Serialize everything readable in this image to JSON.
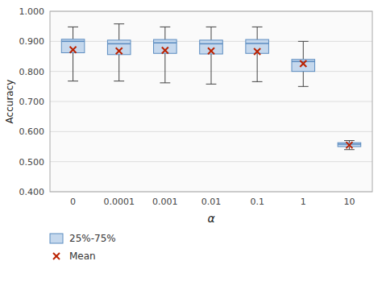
{
  "chart_data": {
    "type": "box",
    "xlabel": "α",
    "ylabel": "Accuracy",
    "categories": [
      "0",
      "0.0001",
      "0.001",
      "0.01",
      "0.1",
      "1",
      "10"
    ],
    "series": [
      {
        "name": "25%-75%",
        "type": "box",
        "color": "#c5d8ed",
        "q1": [
          0.862,
          0.856,
          0.86,
          0.858,
          0.86,
          0.8,
          0.55
        ],
        "median": [
          0.9,
          0.892,
          0.895,
          0.892,
          0.893,
          0.833,
          0.558
        ],
        "q3": [
          0.907,
          0.904,
          0.906,
          0.904,
          0.906,
          0.84,
          0.563
        ],
        "whisker_low": [
          0.768,
          0.768,
          0.762,
          0.758,
          0.766,
          0.75,
          0.54
        ],
        "whisker_high": [
          0.948,
          0.958,
          0.948,
          0.948,
          0.948,
          0.9,
          0.57
        ]
      },
      {
        "name": "Mean",
        "type": "scatter",
        "marker": "x",
        "color": "#bb2200",
        "values": [
          0.872,
          0.868,
          0.87,
          0.868,
          0.866,
          0.826,
          0.555
        ]
      }
    ],
    "ylim": [
      0.4,
      1.0
    ],
    "yticks": [
      {
        "value": 0.4,
        "label": "0.400"
      },
      {
        "value": 0.5,
        "label": "0.500"
      },
      {
        "value": 0.6,
        "label": "0.600"
      },
      {
        "value": 0.7,
        "label": "0.700"
      },
      {
        "value": 0.8,
        "label": "0.800"
      },
      {
        "value": 0.9,
        "label": "0.900"
      },
      {
        "value": 1.0,
        "label": "1.000"
      }
    ],
    "grid": true,
    "legend": "bottom"
  }
}
